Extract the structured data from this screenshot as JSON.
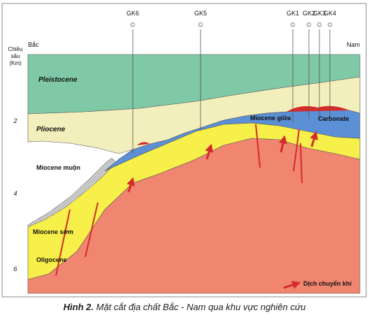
{
  "wells": [
    {
      "name": "GK6"
    },
    {
      "name": "GK5"
    },
    {
      "name": "GK1"
    },
    {
      "name": "GK2"
    },
    {
      "name": "GK3"
    },
    {
      "name": "GK4"
    }
  ],
  "direction": {
    "north": "Bắc",
    "south": "Nam"
  },
  "depth_axis": {
    "title": [
      "Chiều",
      "sâu",
      "(Km)"
    ],
    "ticks": [
      "2",
      "4",
      "6"
    ]
  },
  "layers": {
    "pleistocene": "Pleistocene",
    "pliocene": "Pliocene",
    "miocene_late": "Miocene muộn",
    "miocene_middle": "Miocene giữa",
    "carbonate": "Carbonate",
    "miocene_early": "Miocene sớm",
    "oligocene": "Oligocene"
  },
  "legend": {
    "migration": "Dịch chuyển khí"
  },
  "colors": {
    "pleistocene": "#7fc9a6",
    "pliocene": "#f3efbc",
    "miocene_late": "#ffffff",
    "miocene_middle": "#5b8fd6",
    "miocene_early": "#f7ef4a",
    "oligocene": "#f08570",
    "gas": "#d42b2b",
    "frame": "#555555"
  },
  "caption": {
    "label": "Hình 2.",
    "text": "Mặt cắt địa chất Bắc - Nam qua khu vực nghiên cứu"
  }
}
